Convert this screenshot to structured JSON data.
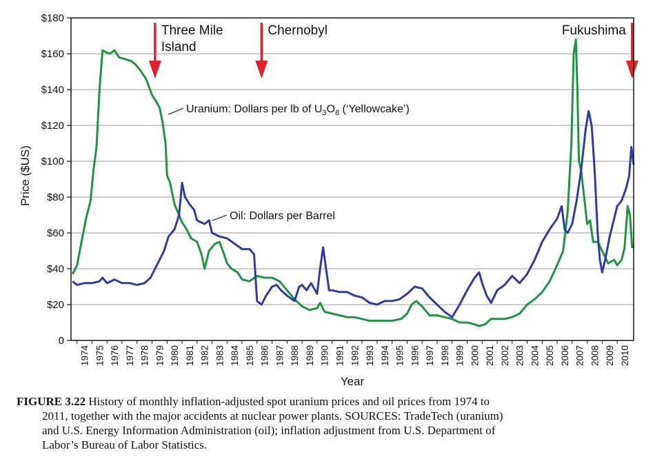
{
  "chart_data": {
    "type": "line",
    "xlabel": "Year",
    "ylabel": "Price ($US)",
    "xlim": [
      1973.6,
      2011.1
    ],
    "ylim": [
      0,
      180
    ],
    "y_ticks": [
      {
        "value": 0,
        "label": "0"
      },
      {
        "value": 20,
        "label": "$20"
      },
      {
        "value": 40,
        "label": "$40"
      },
      {
        "value": 60,
        "label": "$60"
      },
      {
        "value": 80,
        "label": "$80"
      },
      {
        "value": 100,
        "label": "$100"
      },
      {
        "value": 120,
        "label": "$120"
      },
      {
        "value": 140,
        "label": "$140"
      },
      {
        "value": 160,
        "label": "$160"
      },
      {
        "value": 180,
        "label": "$180"
      }
    ],
    "x_ticks": [
      "1974",
      "1975",
      "1976",
      "1977",
      "1978",
      "1979",
      "1980",
      "1981",
      "1982",
      "1983",
      "1984",
      "1985",
      "1986",
      "1987",
      "1988",
      "1989",
      "1990",
      "1991",
      "1992",
      "1993",
      "1994",
      "1995",
      "1996",
      "1997",
      "1998",
      "1999",
      "2000",
      "2001",
      "2002",
      "2003",
      "2004",
      "2005",
      "2006",
      "2007",
      "2008",
      "2009",
      "2010"
    ],
    "grid": true,
    "series": [
      {
        "name": "Uranium: Dollars per lb of U3O8 ('Yellowcake')",
        "color": "#1e9440",
        "points": [
          [
            1973.7,
            37
          ],
          [
            1974.0,
            42
          ],
          [
            1974.3,
            55
          ],
          [
            1974.6,
            68
          ],
          [
            1974.9,
            78
          ],
          [
            1975.1,
            95
          ],
          [
            1975.3,
            108
          ],
          [
            1975.5,
            140
          ],
          [
            1975.7,
            162
          ],
          [
            1975.9,
            161
          ],
          [
            1976.2,
            160
          ],
          [
            1976.5,
            162
          ],
          [
            1976.8,
            158
          ],
          [
            1977.2,
            157
          ],
          [
            1977.6,
            156
          ],
          [
            1977.9,
            154
          ],
          [
            1978.2,
            151
          ],
          [
            1978.6,
            146
          ],
          [
            1979.0,
            137
          ],
          [
            1979.3,
            133
          ],
          [
            1979.5,
            130
          ],
          [
            1979.7,
            122
          ],
          [
            1979.9,
            110
          ],
          [
            1980.0,
            92
          ],
          [
            1980.2,
            88
          ],
          [
            1980.5,
            76
          ],
          [
            1980.8,
            70
          ],
          [
            1981.0,
            66
          ],
          [
            1981.3,
            62
          ],
          [
            1981.6,
            57
          ],
          [
            1982.0,
            55
          ],
          [
            1982.3,
            48
          ],
          [
            1982.5,
            40
          ],
          [
            1982.8,
            50
          ],
          [
            1983.2,
            54
          ],
          [
            1983.5,
            55
          ],
          [
            1983.8,
            48
          ],
          [
            1984.0,
            43
          ],
          [
            1984.3,
            40
          ],
          [
            1984.7,
            38
          ],
          [
            1985.0,
            34
          ],
          [
            1985.5,
            33
          ],
          [
            1986.0,
            36
          ],
          [
            1986.5,
            35
          ],
          [
            1987.0,
            35
          ],
          [
            1987.5,
            33
          ],
          [
            1988.0,
            28
          ],
          [
            1988.5,
            23
          ],
          [
            1989.0,
            19
          ],
          [
            1989.5,
            17
          ],
          [
            1990.0,
            18
          ],
          [
            1990.2,
            21
          ],
          [
            1990.5,
            16
          ],
          [
            1991.0,
            15
          ],
          [
            1991.5,
            14
          ],
          [
            1992.0,
            13
          ],
          [
            1992.5,
            13
          ],
          [
            1993.0,
            12
          ],
          [
            1993.5,
            11
          ],
          [
            1994.0,
            11
          ],
          [
            1995.0,
            11
          ],
          [
            1995.6,
            12
          ],
          [
            1996.0,
            15
          ],
          [
            1996.3,
            20
          ],
          [
            1996.6,
            22
          ],
          [
            1997.0,
            19
          ],
          [
            1997.5,
            14
          ],
          [
            1998.0,
            14
          ],
          [
            1998.5,
            13
          ],
          [
            1999.0,
            12
          ],
          [
            1999.5,
            10
          ],
          [
            2000.0,
            10
          ],
          [
            2000.5,
            9
          ],
          [
            2000.8,
            8
          ],
          [
            2001.2,
            9
          ],
          [
            2001.6,
            12
          ],
          [
            2002.0,
            12
          ],
          [
            2002.5,
            12
          ],
          [
            2003.0,
            13
          ],
          [
            2003.5,
            15
          ],
          [
            2004.0,
            20
          ],
          [
            2004.5,
            23
          ],
          [
            2005.0,
            27
          ],
          [
            2005.5,
            33
          ],
          [
            2006.0,
            42
          ],
          [
            2006.4,
            50
          ],
          [
            2006.7,
            72
          ],
          [
            2006.95,
            110
          ],
          [
            2007.1,
            160
          ],
          [
            2007.25,
            168
          ],
          [
            2007.35,
            140
          ],
          [
            2007.45,
            100
          ],
          [
            2007.6,
            95
          ],
          [
            2007.8,
            80
          ],
          [
            2008.0,
            65
          ],
          [
            2008.2,
            67
          ],
          [
            2008.4,
            55
          ],
          [
            2008.7,
            55
          ],
          [
            2009.0,
            50
          ],
          [
            2009.4,
            43
          ],
          [
            2009.8,
            45
          ],
          [
            2010.0,
            42
          ],
          [
            2010.3,
            45
          ],
          [
            2010.5,
            52
          ],
          [
            2010.7,
            75
          ],
          [
            2010.85,
            70
          ],
          [
            2011.0,
            52
          ],
          [
            2011.1,
            53
          ]
        ]
      },
      {
        "name": "Oil: Dollars per Barrel",
        "color": "#2e3ba0",
        "points": [
          [
            1973.7,
            33
          ],
          [
            1974.0,
            31
          ],
          [
            1974.5,
            32
          ],
          [
            1975.0,
            32
          ],
          [
            1975.5,
            33
          ],
          [
            1975.7,
            35
          ],
          [
            1976.0,
            32
          ],
          [
            1976.5,
            34
          ],
          [
            1977.0,
            32
          ],
          [
            1977.5,
            32
          ],
          [
            1978.0,
            31
          ],
          [
            1978.5,
            32
          ],
          [
            1978.9,
            35
          ],
          [
            1979.2,
            40
          ],
          [
            1979.5,
            45
          ],
          [
            1979.8,
            50
          ],
          [
            1980.1,
            58
          ],
          [
            1980.5,
            62
          ],
          [
            1980.8,
            70
          ],
          [
            1981.0,
            88
          ],
          [
            1981.2,
            80
          ],
          [
            1981.5,
            76
          ],
          [
            1981.8,
            73
          ],
          [
            1982.0,
            67
          ],
          [
            1982.5,
            65
          ],
          [
            1982.8,
            67
          ],
          [
            1983.0,
            60
          ],
          [
            1983.5,
            58
          ],
          [
            1984.0,
            57
          ],
          [
            1984.5,
            54
          ],
          [
            1985.0,
            51
          ],
          [
            1985.5,
            51
          ],
          [
            1985.8,
            48
          ],
          [
            1986.0,
            22
          ],
          [
            1986.3,
            20
          ],
          [
            1986.6,
            25
          ],
          [
            1987.0,
            30
          ],
          [
            1987.3,
            31
          ],
          [
            1987.6,
            28
          ],
          [
            1988.0,
            25
          ],
          [
            1988.5,
            22
          ],
          [
            1988.8,
            30
          ],
          [
            1989.0,
            31
          ],
          [
            1989.3,
            28
          ],
          [
            1989.6,
            32
          ],
          [
            1990.0,
            26
          ],
          [
            1990.2,
            40
          ],
          [
            1990.4,
            52
          ],
          [
            1990.6,
            40
          ],
          [
            1990.8,
            28
          ],
          [
            1991.0,
            28
          ],
          [
            1991.5,
            27
          ],
          [
            1992.0,
            27
          ],
          [
            1992.5,
            25
          ],
          [
            1993.0,
            24
          ],
          [
            1993.5,
            21
          ],
          [
            1994.0,
            20
          ],
          [
            1994.5,
            22
          ],
          [
            1995.0,
            22
          ],
          [
            1995.5,
            23
          ],
          [
            1996.0,
            26
          ],
          [
            1996.5,
            30
          ],
          [
            1997.0,
            29
          ],
          [
            1997.5,
            24
          ],
          [
            1998.0,
            20
          ],
          [
            1998.5,
            16
          ],
          [
            1999.0,
            13
          ],
          [
            1999.5,
            20
          ],
          [
            2000.0,
            28
          ],
          [
            2000.5,
            35
          ],
          [
            2000.8,
            38
          ],
          [
            2001.0,
            32
          ],
          [
            2001.3,
            25
          ],
          [
            2001.6,
            21
          ],
          [
            2002.0,
            28
          ],
          [
            2002.5,
            31
          ],
          [
            2003.0,
            36
          ],
          [
            2003.5,
            32
          ],
          [
            2004.0,
            37
          ],
          [
            2004.5,
            45
          ],
          [
            2005.0,
            55
          ],
          [
            2005.5,
            62
          ],
          [
            2006.0,
            68
          ],
          [
            2006.3,
            75
          ],
          [
            2006.5,
            62
          ],
          [
            2006.7,
            60
          ],
          [
            2007.0,
            65
          ],
          [
            2007.3,
            78
          ],
          [
            2007.6,
            95
          ],
          [
            2007.9,
            118
          ],
          [
            2008.1,
            128
          ],
          [
            2008.3,
            120
          ],
          [
            2008.5,
            95
          ],
          [
            2008.7,
            60
          ],
          [
            2008.85,
            45
          ],
          [
            2009.0,
            38
          ],
          [
            2009.2,
            45
          ],
          [
            2009.5,
            58
          ],
          [
            2009.8,
            68
          ],
          [
            2010.0,
            75
          ],
          [
            2010.3,
            78
          ],
          [
            2010.6,
            85
          ],
          [
            2010.8,
            92
          ],
          [
            2010.95,
            108
          ],
          [
            2011.1,
            98
          ]
        ]
      }
    ],
    "annotations": [
      {
        "text": "Uranium: Dollars per lb of U",
        "sub": "3",
        "text2": "O",
        "sub2": "8",
        "text3": " (‘Yellowcake’)"
      },
      {
        "text": "Oil: Dollars per Barrel"
      }
    ],
    "events": [
      {
        "year": 1979.2,
        "label_lines": [
          "Three Mile",
          "Island"
        ]
      },
      {
        "year": 1986.3,
        "label_lines": [
          "Chernobyl"
        ]
      },
      {
        "year": 2011.0,
        "label_lines": [
          "Fukushima"
        ]
      }
    ],
    "event_color": "#e0202a"
  },
  "caption": {
    "figure_label": "FIGURE 3.22",
    "line1": " History of monthly inflation-adjusted spot uranium prices and oil prices from 1974 to",
    "line2": "2011, together with the major accidents at nuclear power plants. SOURCES: TradeTech (uranium)",
    "line3": "and U.S. Energy Information Administration (oil); inflation adjustment from U.S. Department of",
    "line4": "Labor’s Bureau of Labor Statistics."
  }
}
